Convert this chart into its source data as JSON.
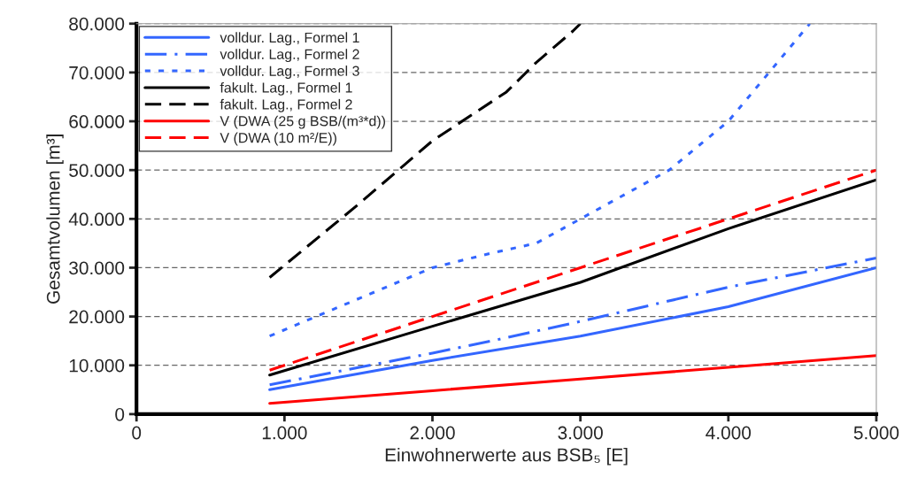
{
  "chart_data": {
    "type": "line",
    "xlabel": "Einwohnerwerte aus BSB₅ [E]",
    "ylabel": "Gesamtvolumen [m³]",
    "xlim": [
      0,
      5000
    ],
    "ylim": [
      0,
      80000
    ],
    "xticks": [
      0,
      {
        "value": 1000,
        "label": "1.000"
      },
      {
        "value": 2000,
        "label": "2.000"
      },
      {
        "value": 3000,
        "label": "3.000"
      },
      {
        "value": 4000,
        "label": "4.000"
      },
      {
        "value": 5000,
        "label": "5.000"
      }
    ],
    "yticks": [
      0,
      {
        "value": 10000,
        "label": "10.000"
      },
      {
        "value": 20000,
        "label": "20.000"
      },
      {
        "value": 30000,
        "label": "30.000"
      },
      {
        "value": 40000,
        "label": "40.000"
      },
      {
        "value": 50000,
        "label": "50.000"
      },
      {
        "value": 60000,
        "label": "60.000"
      },
      {
        "value": 70000,
        "label": "70.000"
      },
      {
        "value": 80000,
        "label": "80.000"
      }
    ],
    "grid": "y",
    "legend": "top left",
    "series": [
      {
        "name": "volldur. Lag., Formel 1",
        "color": "#3366ff",
        "line_style": "solid",
        "x": [
          900,
          2000,
          3000,
          4000,
          5000
        ],
        "values": [
          5000,
          11000,
          16000,
          22000,
          30000
        ]
      },
      {
        "name": "volldur. Lag., Formel 2",
        "color": "#3366ff",
        "line_style": "dashdot",
        "x": [
          900,
          2000,
          2400,
          3000,
          4000,
          5000
        ],
        "values": [
          6000,
          12500,
          15000,
          19000,
          26000,
          32000
        ]
      },
      {
        "name": "volldur. Lag., Formel 3",
        "color": "#3366ff",
        "line_style": "dotted",
        "x": [
          900,
          2000,
          2400,
          2700,
          3000,
          3600,
          4000,
          4550
        ],
        "values": [
          16000,
          30000,
          33000,
          35000,
          40000,
          50000,
          60000,
          80000
        ]
      },
      {
        "name": "fakult. Lag., Formel 1",
        "color": "#000000",
        "line_style": "solid",
        "x": [
          900,
          2000,
          3000,
          4000,
          5000
        ],
        "values": [
          8000,
          18000,
          27000,
          38000,
          48000
        ]
      },
      {
        "name": "fakult. Lag., Formel 2",
        "color": "#000000",
        "line_style": "dashed",
        "x": [
          900,
          1500,
          2000,
          2500,
          2700,
          2950,
          3000
        ],
        "values": [
          28000,
          43000,
          56000,
          66000,
          72000,
          78500,
          80000
        ]
      },
      {
        "name": "V (DWA (25 g BSB/(m³*d))",
        "color": "#ff0000",
        "line_style": "solid",
        "x": [
          900,
          2000,
          3000,
          4000,
          5000
        ],
        "values": [
          2200,
          4800,
          7200,
          9600,
          12000
        ]
      },
      {
        "name": "V (DWA (10 m²/E))",
        "color": "#ff0000",
        "line_style": "dashed",
        "x": [
          900,
          2000,
          3000,
          4000,
          5000
        ],
        "values": [
          9000,
          20000,
          30000,
          40000,
          50000
        ]
      }
    ]
  }
}
